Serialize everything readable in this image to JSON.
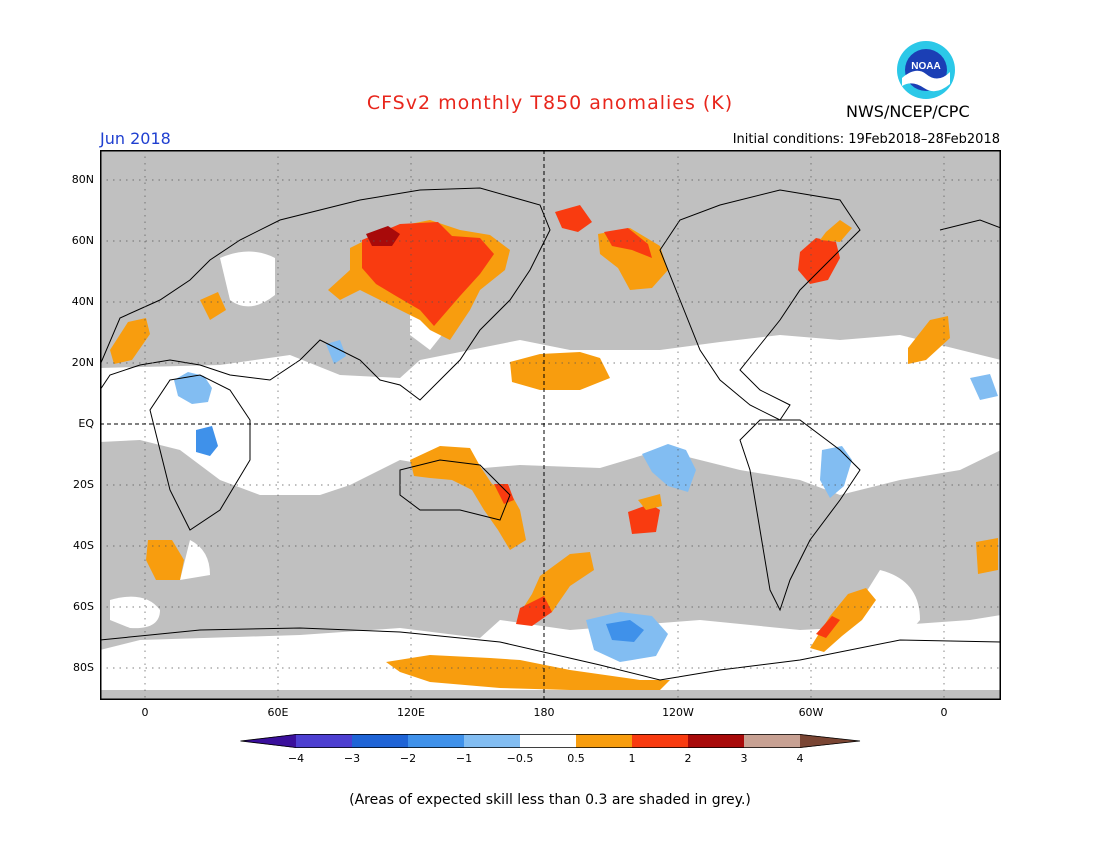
{
  "title": "CFSv2 monthly T850 anomalies (K)",
  "agency": "NWS/NCEP/CPC",
  "logo_text": "NOAA",
  "valid_month": "Jun 2018",
  "initial_conditions": "Initial conditions: 19Feb2018–28Feb2018",
  "footnote": "(Areas of expected skill less than 0.3 are shaded in grey.)",
  "map": {
    "lat_ticks": [
      "80N",
      "60N",
      "40N",
      "20N",
      "EQ",
      "20S",
      "40S",
      "60S",
      "80S"
    ],
    "lon_ticks": [
      "0",
      "60E",
      "120E",
      "180",
      "120W",
      "60W",
      "0"
    ],
    "colors": {
      "ocean": "#ffffff",
      "skill_grey": "#c0c0c0",
      "coast": "#000000"
    }
  },
  "colorbar": {
    "ticks": [
      "−4",
      "−3",
      "−2",
      "−1",
      "−0.5",
      "0.5",
      "1",
      "2",
      "3",
      "4"
    ],
    "colors": [
      "#3a0f9c",
      "#4d3fd1",
      "#1f64d6",
      "#3f91ea",
      "#82bdf2",
      "#ffffff",
      "#f89d0e",
      "#f93b10",
      "#a80a0a",
      "#c8a193",
      "#7a4533"
    ]
  }
}
